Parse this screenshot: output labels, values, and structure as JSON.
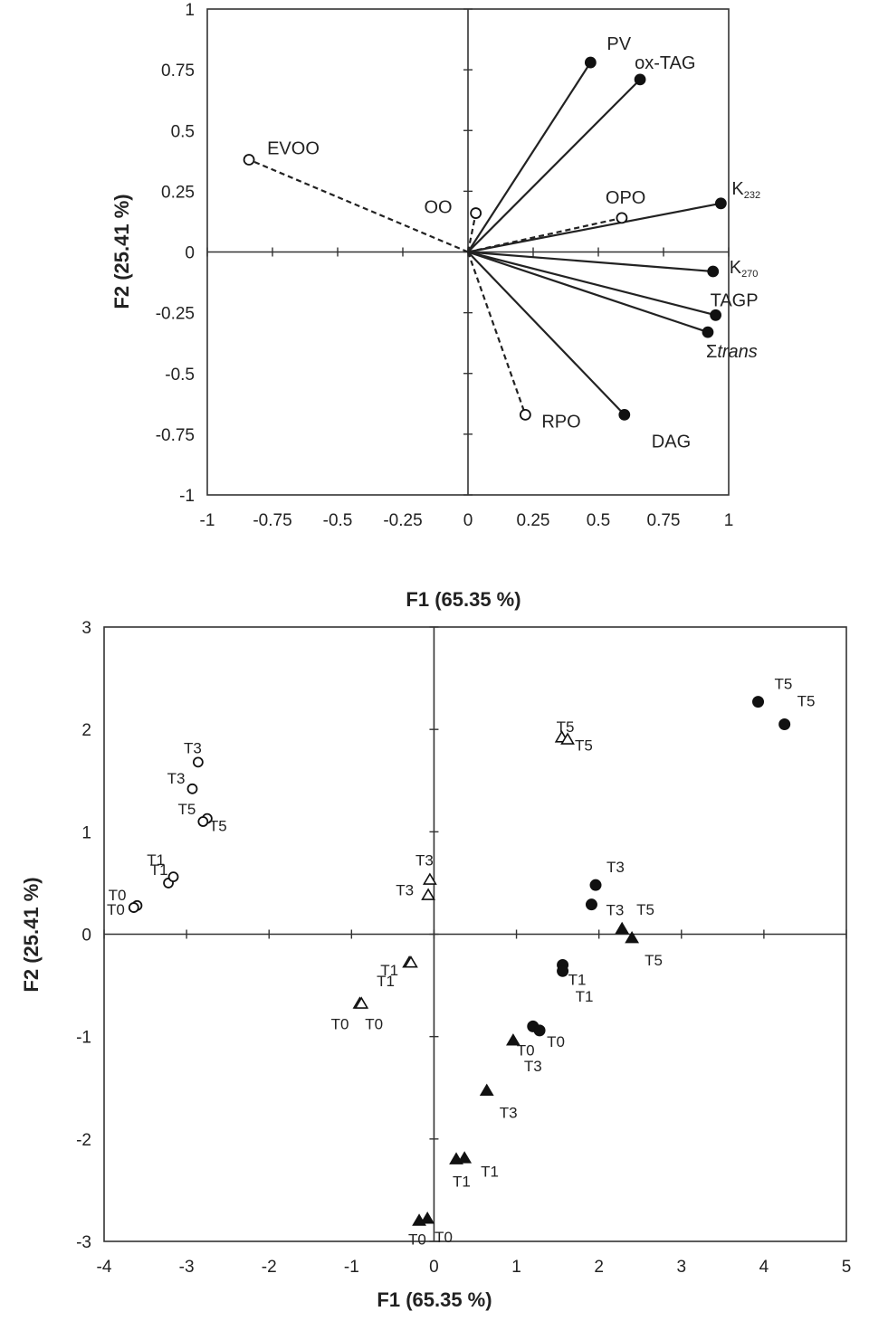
{
  "chart_data": [
    {
      "type": "scatter",
      "subtype": "loading-vector-plot",
      "xlabel": "F1 (65.35 %)",
      "ylabel": "F2 (25.41 %)",
      "xlim": [
        -1,
        1
      ],
      "ylim": [
        -1,
        1
      ],
      "xticks": [
        "-1",
        "-0.75",
        "-0.5",
        "-0.25",
        "0",
        "0.25",
        "0.5",
        "0.75",
        "1"
      ],
      "yticks": [
        "1",
        "0.75",
        "0.5",
        "0.25",
        "0",
        "-0.25",
        "-0.5",
        "-0.75",
        "-1"
      ],
      "grid": false,
      "vectors": [
        {
          "label": "PV",
          "x": 0.47,
          "y": 0.78,
          "style": "solid",
          "marker": "filled-circle"
        },
        {
          "label": "ox-TAG",
          "x": 0.66,
          "y": 0.71,
          "style": "solid",
          "marker": "filled-circle"
        },
        {
          "label": "K",
          "sub": "232",
          "x": 0.97,
          "y": 0.2,
          "style": "solid",
          "marker": "filled-circle"
        },
        {
          "label": "K",
          "sub": "270",
          "x": 0.94,
          "y": -0.08,
          "style": "solid",
          "marker": "filled-circle"
        },
        {
          "label": "TAGP",
          "x": 0.95,
          "y": -0.26,
          "style": "solid",
          "marker": "filled-circle"
        },
        {
          "label": "Σtrans",
          "x": 0.92,
          "y": -0.33,
          "style": "solid",
          "marker": "filled-circle"
        },
        {
          "label": "DAG",
          "x": 0.6,
          "y": -0.67,
          "style": "solid",
          "marker": "filled-circle"
        },
        {
          "label": "EVOO",
          "x": -0.84,
          "y": 0.38,
          "style": "dashed",
          "marker": "open-circle"
        },
        {
          "label": "OO",
          "x": 0.03,
          "y": 0.16,
          "style": "dashed",
          "marker": "open-circle"
        },
        {
          "label": "OPO",
          "x": 0.59,
          "y": 0.14,
          "style": "dashed",
          "marker": "open-circle"
        },
        {
          "label": "RPO",
          "x": 0.22,
          "y": -0.67,
          "style": "dashed",
          "marker": "open-circle"
        }
      ]
    },
    {
      "type": "scatter",
      "xlabel": "F1 (65.35 %)",
      "ylabel": "F2 (25.41 %)",
      "xlim": [
        -4,
        5
      ],
      "ylim": [
        -3,
        3
      ],
      "xticks": [
        "-4",
        "-3",
        "-2",
        "-1",
        "0",
        "1",
        "2",
        "3",
        "4",
        "5"
      ],
      "yticks": [
        "3",
        "2",
        "1",
        "0",
        "-1",
        "-2",
        "-3"
      ],
      "grid": false,
      "series": [
        {
          "marker": "open-circle",
          "points": [
            {
              "x": -3.6,
              "y": 0.28,
              "label": "T0"
            },
            {
              "x": -3.64,
              "y": 0.26,
              "label": "T0"
            },
            {
              "x": -3.22,
              "y": 0.5,
              "label": "T1"
            },
            {
              "x": -3.16,
              "y": 0.56,
              "label": "T1"
            },
            {
              "x": -2.86,
              "y": 1.68,
              "label": "T3"
            },
            {
              "x": -2.93,
              "y": 1.42,
              "label": "T3"
            },
            {
              "x": -2.75,
              "y": 1.13,
              "label": "T5"
            },
            {
              "x": -2.8,
              "y": 1.1,
              "label": "T5"
            }
          ]
        },
        {
          "marker": "open-triangle",
          "points": [
            {
              "x": -0.9,
              "y": -0.68,
              "label": "T0"
            },
            {
              "x": -0.88,
              "y": -0.68,
              "label": "T0"
            },
            {
              "x": -0.3,
              "y": -0.28,
              "label": "T1"
            },
            {
              "x": -0.28,
              "y": -0.28,
              "label": "T1"
            },
            {
              "x": -0.05,
              "y": 0.53,
              "label": "T3"
            },
            {
              "x": -0.07,
              "y": 0.38,
              "label": "T3"
            },
            {
              "x": 1.55,
              "y": 1.92,
              "label": "T5"
            },
            {
              "x": 1.62,
              "y": 1.9,
              "label": "T5"
            }
          ]
        },
        {
          "marker": "filled-triangle",
          "points": [
            {
              "x": -0.18,
              "y": -2.8,
              "label": "T0"
            },
            {
              "x": -0.08,
              "y": -2.78,
              "label": "T0"
            },
            {
              "x": 0.27,
              "y": -2.2,
              "label": "T1"
            },
            {
              "x": 0.37,
              "y": -2.19,
              "label": "T1"
            },
            {
              "x": 0.96,
              "y": -1.04,
              "label": "T3"
            },
            {
              "x": 0.64,
              "y": -1.53,
              "label": "T3"
            },
            {
              "x": 2.28,
              "y": 0.05,
              "label": "T5"
            },
            {
              "x": 2.4,
              "y": -0.04,
              "label": "T5"
            }
          ]
        },
        {
          "marker": "filled-circle",
          "points": [
            {
              "x": 1.2,
              "y": -0.9,
              "label": "T0"
            },
            {
              "x": 1.28,
              "y": -0.94,
              "label": "T0"
            },
            {
              "x": 1.56,
              "y": -0.3,
              "label": "T1"
            },
            {
              "x": 1.56,
              "y": -0.36,
              "label": "T1"
            },
            {
              "x": 1.96,
              "y": 0.48,
              "label": "T3"
            },
            {
              "x": 1.91,
              "y": 0.29,
              "label": "T3"
            },
            {
              "x": 3.93,
              "y": 2.27,
              "label": "T5"
            },
            {
              "x": 4.25,
              "y": 2.05,
              "label": "T5"
            }
          ]
        }
      ]
    }
  ]
}
